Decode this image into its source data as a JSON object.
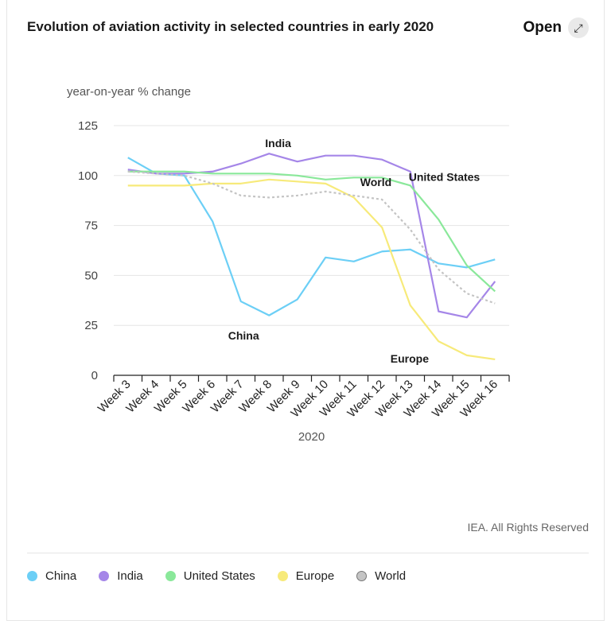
{
  "header": {
    "title": "Evolution of aviation activity in selected countries in early 2020",
    "open_label": "Open",
    "open_icon": "expand-icon"
  },
  "footer": {
    "credit": "IEA. All Rights Reserved"
  },
  "chart_data": {
    "type": "line",
    "ylabel": "year-on-year % change",
    "xlabel": "2020",
    "ylim": [
      0,
      125
    ],
    "yticks": [
      0,
      25,
      50,
      75,
      100,
      125
    ],
    "grid": true,
    "legend_position": "bottom",
    "categories": [
      "Week 3",
      "Week 4",
      "Week 5",
      "Week 6",
      "Week 7",
      "Week 8",
      "Week 9",
      "Week 10",
      "Week 11",
      "Week 12",
      "Week 13",
      "Week 14",
      "Week 15",
      "Week 16"
    ],
    "series": [
      {
        "name": "China",
        "color": "#6ccff6",
        "dashed": false,
        "values": [
          109,
          101,
          100,
          77,
          37,
          30,
          38,
          59,
          57,
          62,
          63,
          56,
          54,
          58
        ]
      },
      {
        "name": "India",
        "color": "#a586e8",
        "dashed": false,
        "values": [
          103,
          101,
          101,
          102,
          106,
          111,
          107,
          110,
          110,
          108,
          102,
          32,
          29,
          47
        ]
      },
      {
        "name": "United States",
        "color": "#8ae89a",
        "dashed": false,
        "values": [
          102,
          102,
          102,
          101,
          101,
          101,
          100,
          98,
          99,
          99,
          95,
          78,
          55,
          42
        ]
      },
      {
        "name": "Europe",
        "color": "#f7ea7a",
        "dashed": false,
        "values": [
          95,
          95,
          95,
          96,
          96,
          98,
          97,
          96,
          89,
          74,
          35,
          17,
          10,
          8
        ]
      },
      {
        "name": "World",
        "color": "#c4c4c4",
        "dashed": true,
        "values": [
          102,
          101,
          100,
          96,
          90,
          89,
          90,
          92,
          90,
          88,
          73,
          53,
          41,
          36
        ]
      }
    ],
    "annotations": [
      {
        "text": "India",
        "series": "India",
        "at": "Week 8"
      },
      {
        "text": "United States",
        "series": "United States",
        "at": "Week 13"
      },
      {
        "text": "World",
        "series": "World",
        "at": "Week 11"
      },
      {
        "text": "China",
        "series": "China",
        "at": "Week 7"
      },
      {
        "text": "Europe",
        "series": "Europe",
        "at": "Week 13"
      }
    ]
  }
}
